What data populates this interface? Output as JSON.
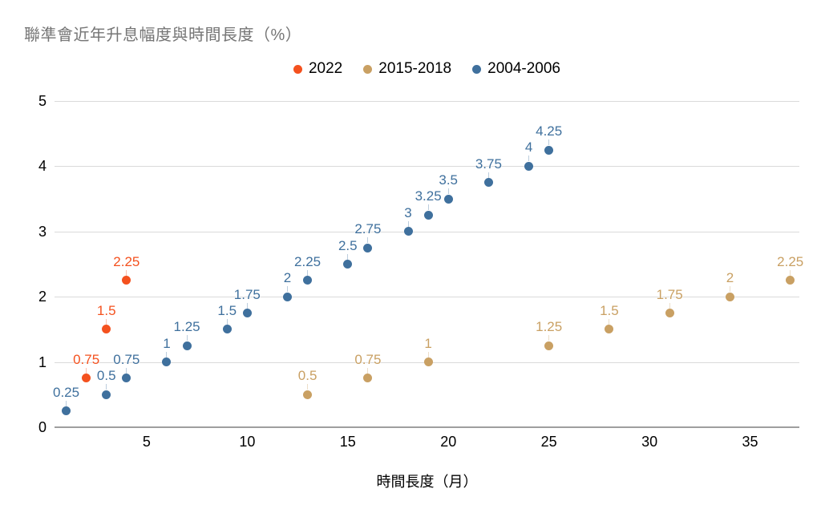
{
  "title": "聯準會近年升息幅度與時間長度（%）",
  "x_axis_title": "時間長度（月）",
  "colors": {
    "background": "#ffffff",
    "title_text": "#757575",
    "axis_text": "#000000",
    "gridline": "#dadada",
    "zero_line": "#9e9e9e",
    "series_2022": "#f4511e",
    "series_2015_2018": "#c9a063",
    "series_2004_2006": "#3f709d"
  },
  "chart_data": {
    "type": "scatter",
    "title": "聯準會近年升息幅度與時間長度（%）",
    "xlabel": "時間長度（月）",
    "ylabel": "",
    "xlim": [
      0.42,
      37.45
    ],
    "ylim": [
      0,
      5
    ],
    "x_ticks": [
      "5",
      "10",
      "15",
      "20",
      "25",
      "30",
      "35"
    ],
    "x_tick_values": [
      5,
      10,
      15,
      20,
      25,
      30,
      35
    ],
    "y_ticks": [
      "0",
      "1",
      "2",
      "3",
      "4",
      "5"
    ],
    "y_tick_values": [
      0,
      1,
      2,
      3,
      4,
      5
    ],
    "grid": "horizontal",
    "legend_position": "top",
    "point_labels": true,
    "series": [
      {
        "name": "2022",
        "color": "#f4511e",
        "points": [
          {
            "x": 2,
            "y": 0.75,
            "label": "0.75"
          },
          {
            "x": 3,
            "y": 1.5,
            "label": "1.5"
          },
          {
            "x": 4,
            "y": 2.25,
            "label": "2.25"
          }
        ]
      },
      {
        "name": "2015-2018",
        "color": "#c9a063",
        "points": [
          {
            "x": 13,
            "y": 0.5,
            "label": "0.5"
          },
          {
            "x": 16,
            "y": 0.75,
            "label": "0.75"
          },
          {
            "x": 19,
            "y": 1,
            "label": "1"
          },
          {
            "x": 25,
            "y": 1.25,
            "label": "1.25"
          },
          {
            "x": 28,
            "y": 1.5,
            "label": "1.5"
          },
          {
            "x": 31,
            "y": 1.75,
            "label": "1.75"
          },
          {
            "x": 34,
            "y": 2,
            "label": "2"
          },
          {
            "x": 37,
            "y": 2.25,
            "label": "2.25"
          }
        ]
      },
      {
        "name": "2004-2006",
        "color": "#3f709d",
        "points": [
          {
            "x": 1,
            "y": 0.25,
            "label": "0.25"
          },
          {
            "x": 3,
            "y": 0.5,
            "label": "0.5"
          },
          {
            "x": 4,
            "y": 0.75,
            "label": "0.75"
          },
          {
            "x": 6,
            "y": 1,
            "label": "1"
          },
          {
            "x": 7,
            "y": 1.25,
            "label": "1.25"
          },
          {
            "x": 9,
            "y": 1.5,
            "label": "1.5"
          },
          {
            "x": 10,
            "y": 1.75,
            "label": "1.75"
          },
          {
            "x": 12,
            "y": 2,
            "label": "2"
          },
          {
            "x": 13,
            "y": 2.25,
            "label": "2.25"
          },
          {
            "x": 15,
            "y": 2.5,
            "label": "2.5"
          },
          {
            "x": 16,
            "y": 2.75,
            "label": "2.75"
          },
          {
            "x": 18,
            "y": 3,
            "label": "3"
          },
          {
            "x": 19,
            "y": 3.25,
            "label": "3.25"
          },
          {
            "x": 20,
            "y": 3.5,
            "label": "3.5"
          },
          {
            "x": 22,
            "y": 3.75,
            "label": "3.75"
          },
          {
            "x": 24,
            "y": 4,
            "label": "4"
          },
          {
            "x": 25,
            "y": 4.25,
            "label": "4.25"
          }
        ]
      }
    ]
  }
}
